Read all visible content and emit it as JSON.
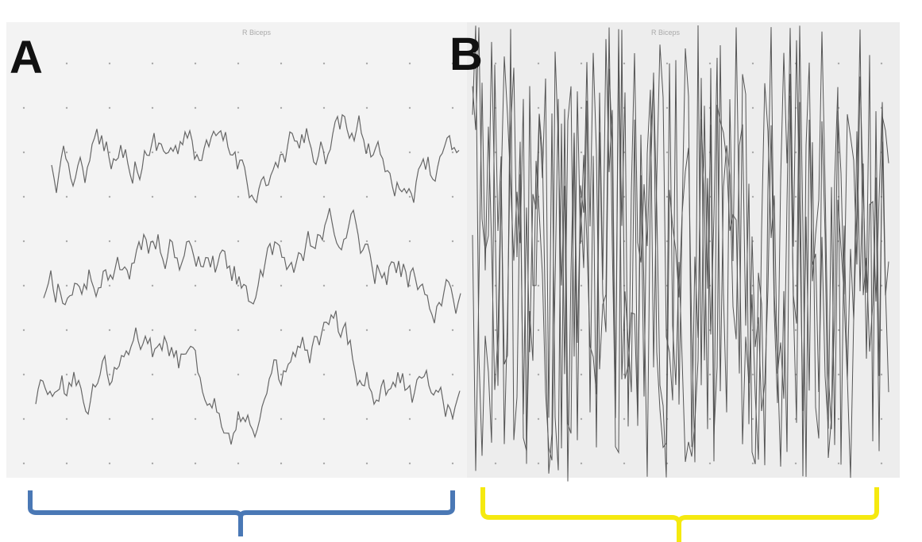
{
  "panels": [
    {
      "label": "A",
      "channel": "R Biceps"
    },
    {
      "label": "B",
      "channel": "R Biceps"
    }
  ]
}
